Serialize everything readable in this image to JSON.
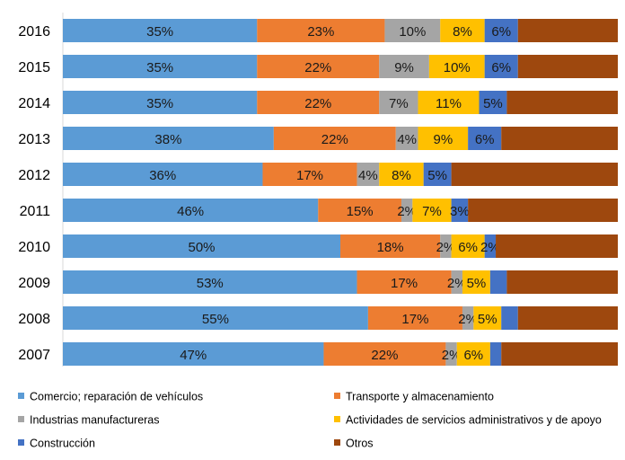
{
  "chart_data": {
    "type": "bar",
    "orientation": "horizontal",
    "stacked": true,
    "categories": [
      "2016",
      "2015",
      "2014",
      "2013",
      "2012",
      "2011",
      "2010",
      "2009",
      "2008",
      "2007"
    ],
    "series": [
      {
        "name": "Comercio; reparación de vehículos",
        "color": "#5B9BD5",
        "values": [
          35,
          35,
          35,
          38,
          36,
          46,
          50,
          53,
          55,
          47
        ],
        "labels": [
          "35%",
          "35%",
          "35%",
          "38%",
          "36%",
          "46%",
          "50%",
          "53%",
          "55%",
          "47%"
        ]
      },
      {
        "name": "Transporte y almacenamiento",
        "color": "#ED7D31",
        "values": [
          23,
          22,
          22,
          22,
          17,
          15,
          18,
          17,
          17,
          22
        ],
        "labels": [
          "23%",
          "22%",
          "22%",
          "22%",
          "17%",
          "15%",
          "18%",
          "17%",
          "17%",
          "22%"
        ]
      },
      {
        "name": "Industrias manufactureras",
        "color": "#A5A5A5",
        "values": [
          10,
          9,
          7,
          4,
          4,
          2,
          2,
          2,
          2,
          2
        ],
        "labels": [
          "10%",
          "9%",
          "7%",
          "4%",
          "4%",
          "2%",
          "2%",
          "2%",
          "2%",
          "2%"
        ]
      },
      {
        "name": "Actividades de servicios administrativos y de apoyo",
        "color": "#FFC000",
        "values": [
          8,
          10,
          11,
          9,
          8,
          7,
          6,
          5,
          5,
          6
        ],
        "labels": [
          "8%",
          "10%",
          "11%",
          "9%",
          "8%",
          "7%",
          "6%",
          "5%",
          "5%",
          "6%"
        ]
      },
      {
        "name": "Construcción",
        "color": "#4472C4",
        "values": [
          6,
          6,
          5,
          6,
          5,
          3,
          2,
          3,
          3,
          2
        ],
        "labels": [
          "6%",
          "6%",
          "5%",
          "6%",
          "5%",
          "3%",
          "2%",
          "",
          "",
          ""
        ]
      },
      {
        "name": "Otros",
        "color": "#9E480E",
        "values": [
          18,
          18,
          20,
          21,
          30,
          27,
          22,
          20,
          18,
          21
        ],
        "labels": [
          "",
          "",
          "",
          "",
          "",
          "",
          "",
          "",
          "",
          ""
        ]
      }
    ],
    "xlim": [
      0,
      100
    ],
    "grid": false,
    "legend_position": "bottom"
  }
}
